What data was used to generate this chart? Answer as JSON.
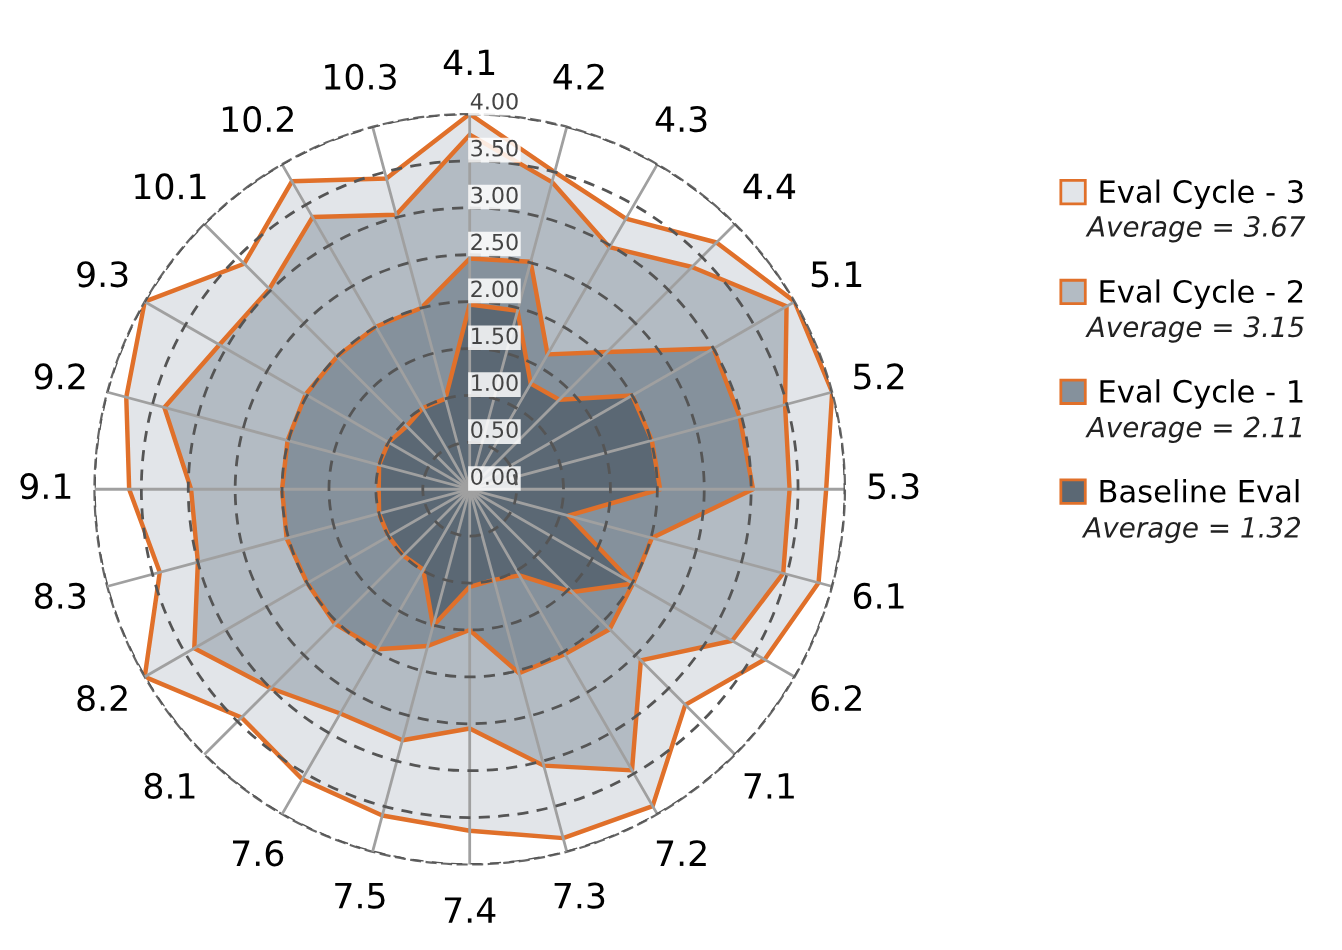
{
  "chart_data": {
    "type": "radar",
    "categories": [
      "4.1",
      "4.2",
      "4.3",
      "4.4",
      "5.1",
      "5.2",
      "5.3",
      "6.1",
      "6.2",
      "7.1",
      "7.2",
      "7.3",
      "7.4",
      "7.5",
      "7.6",
      "8.1",
      "8.2",
      "8.3",
      "9.1",
      "9.2",
      "9.3",
      "10.1",
      "10.2",
      "10.3"
    ],
    "series": [
      {
        "name": "Eval Cycle - 3",
        "color": "#e2e5e9",
        "values": [
          4.0,
          3.5,
          3.33,
          3.72,
          4.0,
          4.0,
          3.8,
          3.85,
          3.63,
          3.25,
          3.9,
          3.85,
          3.64,
          3.6,
          3.57,
          3.44,
          4.0,
          3.42,
          3.63,
          3.79,
          4.0,
          3.4,
          3.79,
          3.43
        ]
      },
      {
        "name": "Eval Cycle - 2",
        "color": "#b3bbc3",
        "values": [
          3.78,
          3.39,
          2.98,
          3.35,
          3.9,
          3.48,
          3.41,
          3.46,
          3.23,
          2.58,
          3.46,
          3.05,
          2.55,
          2.77,
          2.76,
          3.0,
          3.39,
          3.0,
          2.97,
          3.37,
          3.08,
          3.02,
          3.35,
          3.03
        ]
      },
      {
        "name": "Eval Cycle - 1",
        "color": "#85919c",
        "values": [
          2.46,
          2.51,
          1.66,
          2.07,
          3.0,
          2.98,
          3.02,
          2.01,
          2.01,
          2.11,
          2.03,
          2.03,
          1.5,
          1.73,
          1.97,
          2.03,
          2.0,
          2.02,
          2.0,
          2.01,
          2.02,
          2.0,
          2.0,
          2.0
        ]
      },
      {
        "name": "Baseline Eval",
        "color": "#5b6874",
        "values": [
          1.97,
          1.97,
          1.3,
          1.35,
          2.0,
          2.01,
          2.03,
          1.09,
          2.01,
          1.55,
          1.06,
          1.0,
          1.04,
          1.51,
          0.99,
          1.0,
          1.0,
          1.0,
          0.97,
          1.0,
          1.0,
          0.95,
          1.0,
          1.0
        ]
      }
    ],
    "ylim": [
      0,
      4
    ],
    "yticks": [
      {
        "value": 0,
        "label": "0.00"
      },
      {
        "value": 0.5,
        "label": "0.50"
      },
      {
        "value": 1,
        "label": "1.00"
      },
      {
        "value": 1.5,
        "label": "1.50"
      },
      {
        "value": 2,
        "label": "2.00"
      },
      {
        "value": 2.5,
        "label": "2.50"
      },
      {
        "value": 3,
        "label": "3.00"
      },
      {
        "value": 3.5,
        "label": "3.50"
      },
      {
        "value": 4,
        "label": "4.00"
      }
    ],
    "grid": true,
    "legend": "right",
    "annotations": [
      "Average = 3.67",
      "Average = 3.15",
      "Average = 2.11",
      "Average = 1.32"
    ]
  }
}
